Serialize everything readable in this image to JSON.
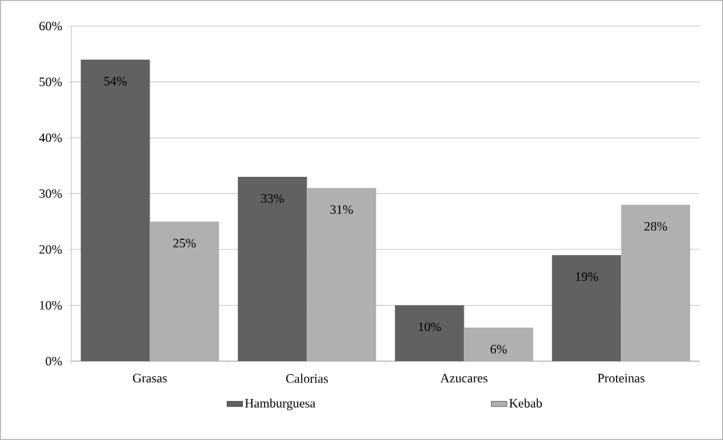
{
  "chart_data": {
    "type": "bar",
    "categories": [
      "Grasas",
      "Calorias",
      "Azucares",
      "Proteinas"
    ],
    "series": [
      {
        "name": "Hamburguesa",
        "color": "#616161",
        "values": [
          54,
          33,
          10,
          19
        ],
        "value_labels": [
          "54%",
          "33%",
          "10%",
          "19%"
        ]
      },
      {
        "name": "Kebab",
        "color": "#b0b0b0",
        "values": [
          25,
          31,
          6,
          28
        ],
        "value_labels": [
          "25%",
          "31%",
          "6%",
          "28%"
        ]
      }
    ],
    "ylim": [
      0,
      60
    ],
    "yticks": [
      {
        "value": 0,
        "label": "0%"
      },
      {
        "value": 10,
        "label": "10%"
      },
      {
        "value": 20,
        "label": "20%"
      },
      {
        "value": 30,
        "label": "30%"
      },
      {
        "value": 40,
        "label": "40%"
      },
      {
        "value": 50,
        "label": "50%"
      },
      {
        "value": 60,
        "label": "60%"
      }
    ],
    "grid": "y",
    "legend": "bottom"
  }
}
